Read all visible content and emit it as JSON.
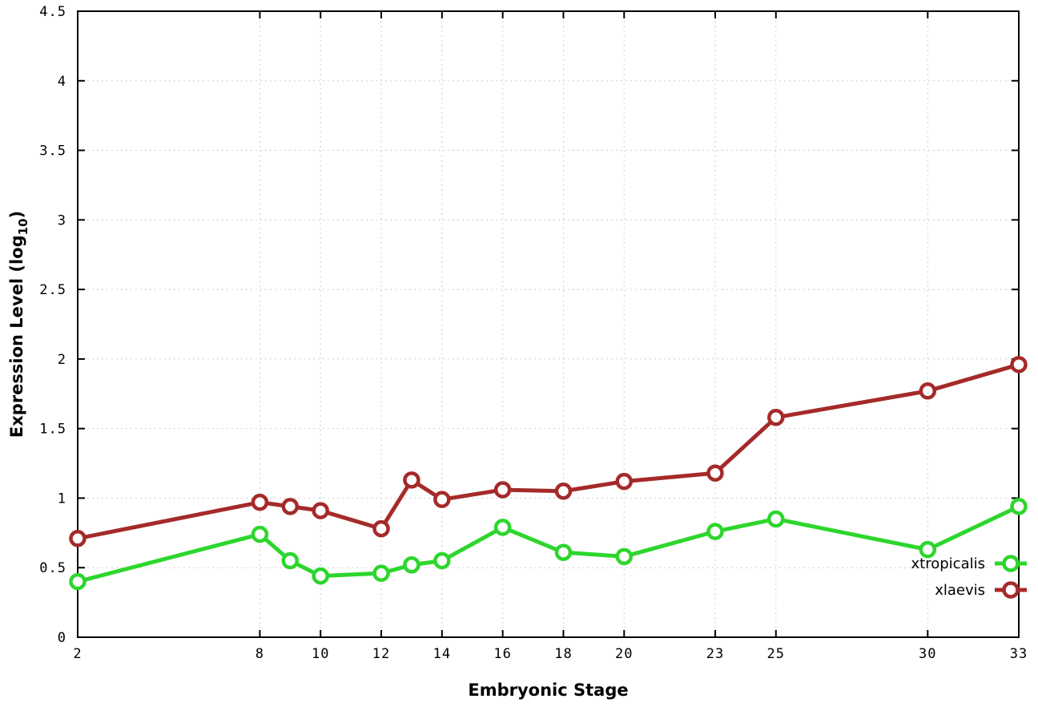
{
  "chart_data": {
    "type": "line",
    "title": "",
    "xlabel": "Embryonic Stage",
    "ylabel": {
      "pre": "Expression Level (log",
      "sub": "10",
      "post": ")"
    },
    "xlim": [
      2,
      33
    ],
    "ylim": [
      0,
      4.5
    ],
    "x_ticks": [
      2,
      8,
      10,
      12,
      14,
      16,
      18,
      20,
      23,
      25,
      30,
      33
    ],
    "y_ticks": [
      0,
      0.5,
      1,
      1.5,
      2,
      2.5,
      3,
      3.5,
      4,
      4.5
    ],
    "y_tick_labels": [
      "0",
      "0.5",
      "1",
      "1.5",
      "2",
      "2.5",
      "3",
      "3.5",
      "4",
      "4.5"
    ],
    "grid": true,
    "legend_position": "inside-right",
    "marker": "open-circle",
    "x": [
      2,
      8,
      9,
      10,
      12,
      13,
      14,
      16,
      18,
      20,
      23,
      25,
      30,
      33
    ],
    "series": [
      {
        "name": "xtropicalis",
        "color": "#2dd62d",
        "values": [
          0.4,
          0.74,
          0.55,
          0.44,
          0.46,
          0.52,
          0.55,
          0.79,
          0.61,
          0.58,
          0.76,
          0.85,
          0.63,
          0.94
        ]
      },
      {
        "name": "xlaevis",
        "color": "#a52a2a",
        "values": [
          0.71,
          0.97,
          0.94,
          0.91,
          0.78,
          1.13,
          0.99,
          1.06,
          1.05,
          1.12,
          1.18,
          1.58,
          1.77,
          1.96
        ]
      }
    ]
  }
}
